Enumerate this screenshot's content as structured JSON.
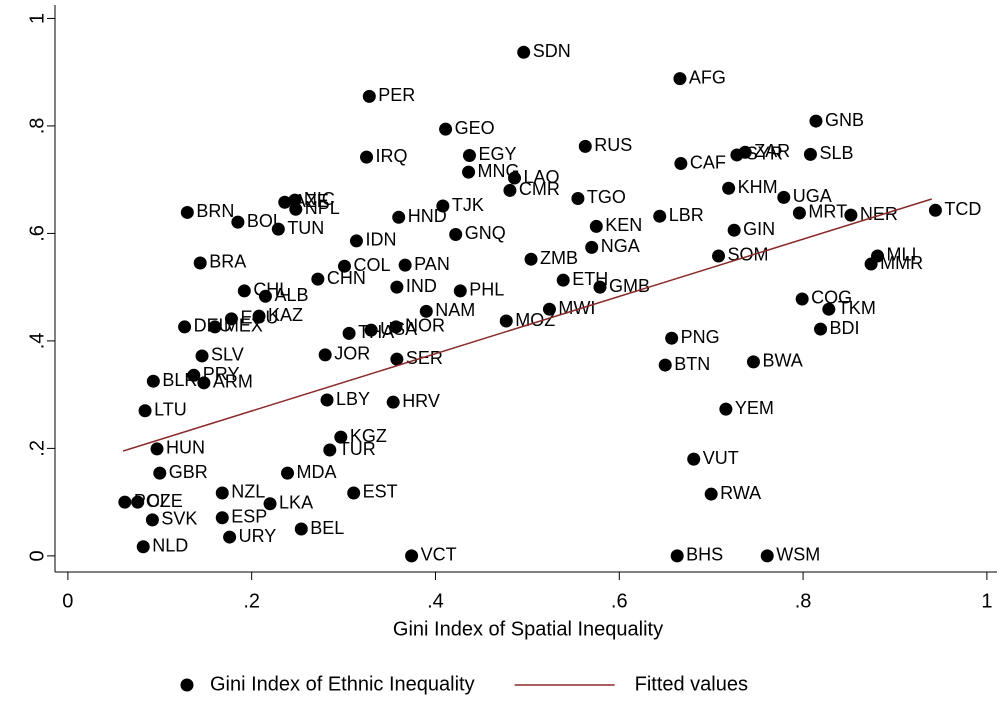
{
  "chart_data": {
    "type": "scatter",
    "xlabel": "Gini Index of Spatial Inequality",
    "xlim": [
      -0.014,
      1.011
    ],
    "ylim": [
      -0.03,
      1.025
    ],
    "xticks": [
      0,
      {
        "value": 0.2,
        "label": ".2"
      },
      {
        "value": 0.4,
        "label": ".4"
      },
      {
        "value": 0.6,
        "label": ".6"
      },
      {
        "value": 0.8,
        "label": ".8"
      },
      1
    ],
    "yticks": [
      0,
      {
        "value": 0.2,
        "label": ".2"
      },
      {
        "value": 0.4,
        "label": ".4"
      },
      {
        "value": 0.6,
        "label": ".6"
      },
      {
        "value": 0.8,
        "label": ".8"
      },
      1
    ],
    "grid": false,
    "series": [
      {
        "name": "Gini Index of Ethnic Inequality",
        "color": "#000000",
        "mode": "markers",
        "labels": [
          "SDN",
          "AFG",
          "PER",
          "GNB",
          "GEO",
          "RUS",
          "IRQ",
          "EGY",
          "SLB",
          "CAF",
          "ZAR",
          "SYR",
          "MNG",
          "LAO",
          "CMR",
          "TGO",
          "KHM",
          "UGA",
          "MRT",
          "NER",
          "TCD",
          "AZE",
          "NIC",
          "NPL",
          "BRN",
          "BOL",
          "TUN",
          "TJK",
          "HND",
          "LBR",
          "GIN",
          "KEN",
          "IDN",
          "GNQ",
          "ZMB",
          "NGA",
          "SOM",
          "MLI",
          "MMR",
          "BRA",
          "COL",
          "PAN",
          "IND",
          "ETH",
          "GMB",
          "CHL",
          "ALB",
          "CHN",
          "PHL",
          "COG",
          "TKM",
          "BDI",
          "MWI",
          "MOZ",
          "KAZ",
          "NAM",
          "NOR",
          "DEU",
          "MEX",
          "ECU",
          "THA",
          "USA",
          "PNG",
          "JOR",
          "SER",
          "SLV",
          "BTN",
          "BWA",
          "PRY",
          "ARM",
          "BLR",
          "HRV",
          "LBY",
          "LTU",
          "YEM",
          "KGZ",
          "TUR",
          "MDA",
          "GBR",
          "HUN",
          "VUT",
          "RWA",
          "EST",
          "NZL",
          "LKA",
          "CZE",
          "POL",
          "SVK",
          "ESP",
          "BEL",
          "NLD",
          "URY",
          "VCT",
          "BHS",
          "WSM"
        ],
        "x": [
          0.496,
          0.666,
          0.328,
          0.814,
          0.411,
          0.563,
          0.325,
          0.437,
          0.808,
          0.667,
          0.737,
          0.728,
          0.436,
          0.486,
          0.481,
          0.555,
          0.719,
          0.779,
          0.796,
          0.852,
          0.944,
          0.236,
          0.247,
          0.248,
          0.13,
          0.185,
          0.229,
          0.408,
          0.36,
          0.644,
          0.725,
          0.575,
          0.314,
          0.422,
          0.504,
          0.57,
          0.708,
          0.881,
          0.874,
          0.144,
          0.301,
          0.367,
          0.358,
          0.539,
          0.579,
          0.192,
          0.215,
          0.272,
          0.427,
          0.799,
          0.828,
          0.819,
          0.524,
          0.477,
          0.208,
          0.39,
          0.357,
          0.127,
          0.16,
          0.178,
          0.306,
          0.33,
          0.657,
          0.28,
          0.358,
          0.146,
          0.65,
          0.746,
          0.137,
          0.148,
          0.093,
          0.354,
          0.282,
          0.084,
          0.716,
          0.297,
          0.285,
          0.239,
          0.1,
          0.097,
          0.681,
          0.7,
          0.311,
          0.168,
          0.22,
          0.076,
          0.062,
          0.092,
          0.168,
          0.254,
          0.082,
          0.176,
          0.374,
          0.663,
          0.761
        ],
        "values": [
          0.937,
          0.888,
          0.855,
          0.809,
          0.794,
          0.762,
          0.742,
          0.745,
          0.747,
          0.73,
          0.751,
          0.746,
          0.714,
          0.703,
          0.68,
          0.665,
          0.684,
          0.667,
          0.638,
          0.634,
          0.643,
          0.658,
          0.662,
          0.645,
          0.639,
          0.621,
          0.608,
          0.651,
          0.63,
          0.632,
          0.606,
          0.613,
          0.586,
          0.598,
          0.552,
          0.574,
          0.558,
          0.558,
          0.543,
          0.545,
          0.539,
          0.541,
          0.5,
          0.513,
          0.5,
          0.493,
          0.483,
          0.515,
          0.493,
          0.478,
          0.459,
          0.422,
          0.459,
          0.437,
          0.446,
          0.455,
          0.426,
          0.426,
          0.426,
          0.441,
          0.414,
          0.42,
          0.405,
          0.374,
          0.366,
          0.372,
          0.355,
          0.361,
          0.336,
          0.322,
          0.325,
          0.286,
          0.29,
          0.27,
          0.273,
          0.221,
          0.197,
          0.154,
          0.154,
          0.199,
          0.18,
          0.115,
          0.117,
          0.117,
          0.097,
          0.1,
          0.1,
          0.067,
          0.071,
          0.05,
          0.017,
          0.035,
          0,
          0,
          0
        ]
      },
      {
        "name": "Fitted values",
        "color": "#8b2a2a",
        "mode": "line",
        "x": [
          0.06,
          0.94
        ],
        "values": [
          0.195,
          0.664
        ]
      }
    ]
  }
}
